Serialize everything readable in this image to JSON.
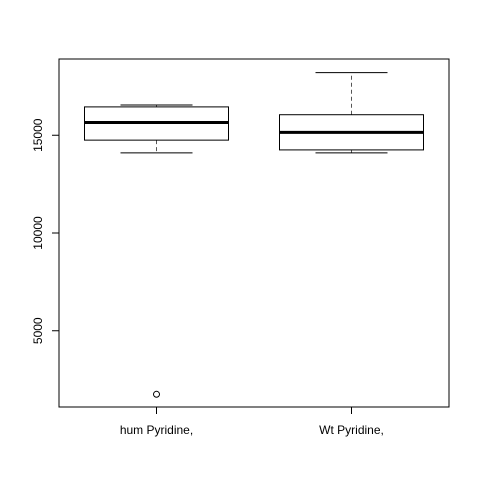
{
  "chart_data": {
    "type": "boxplot",
    "title": "",
    "xlabel": "",
    "ylabel": "",
    "ylim": [
      1100,
      18900
    ],
    "y_ticks": [
      5000,
      10000,
      15000
    ],
    "y_tick_labels": [
      "5000",
      "10000",
      "15000"
    ],
    "grid": false,
    "categories": [
      "hum Pyridine,",
      "Wt Pyridine,"
    ],
    "boxes": [
      {
        "category": "hum Pyridine,",
        "whisker_low": 14100,
        "q1": 14750,
        "median": 15650,
        "q3": 16450,
        "whisker_high": 16550,
        "outliers": [
          1750
        ]
      },
      {
        "category": "Wt Pyridine,",
        "whisker_low": 14100,
        "q1": 14250,
        "median": 15150,
        "q3": 16050,
        "whisker_high": 18200,
        "outliers": []
      }
    ]
  },
  "colors": {
    "box_fill": "#ffffff",
    "stroke": "#000000",
    "whisker": "#555555"
  }
}
